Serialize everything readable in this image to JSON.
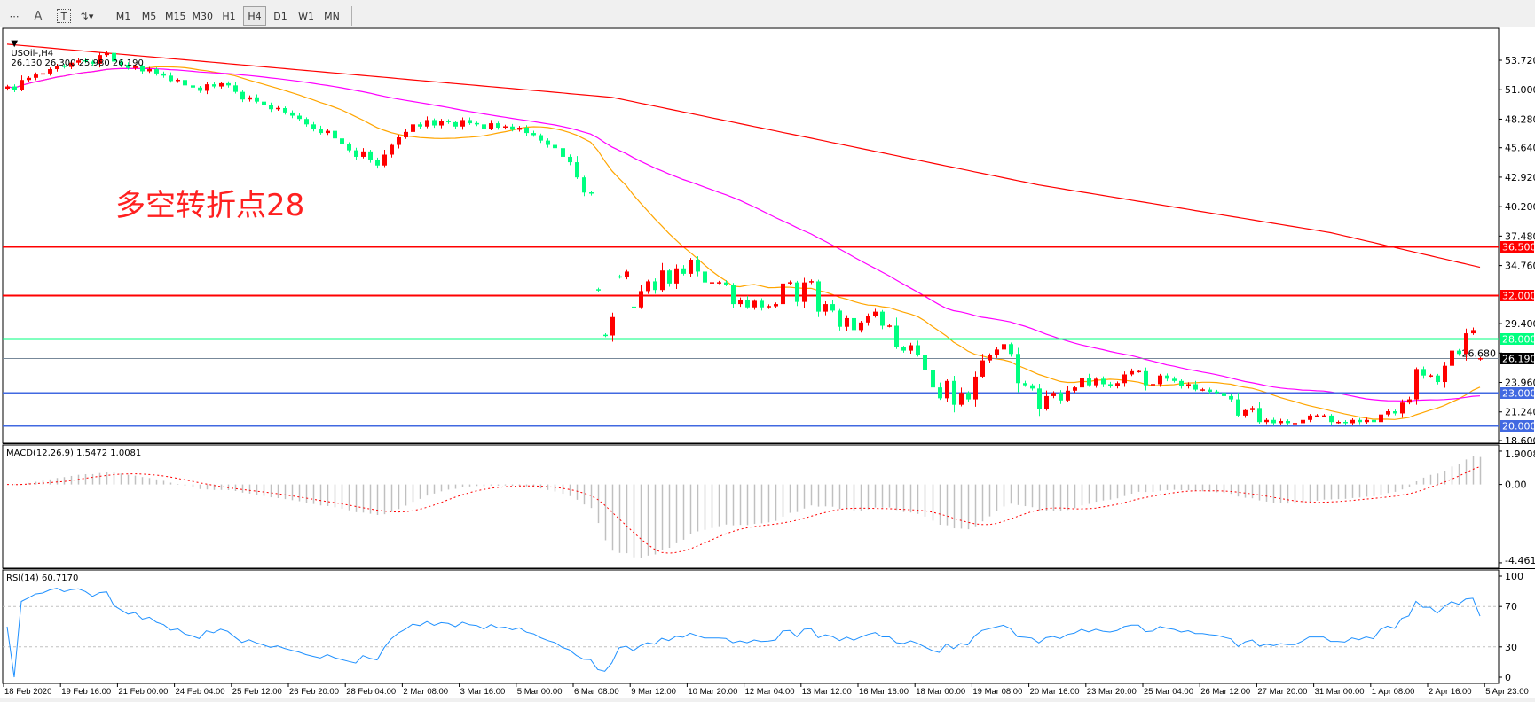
{
  "toolbar": {
    "tools": [
      {
        "name": "grid-period-separator-icon",
        "glyph": "⋯"
      },
      {
        "name": "text-tool-icon",
        "glyph": "A"
      },
      {
        "name": "text-label-tool-icon",
        "glyph": "T"
      },
      {
        "name": "arrows-tool-icon",
        "glyph": "⇅▾"
      }
    ],
    "timeframes": [
      "M1",
      "M5",
      "M15",
      "M30",
      "H1",
      "H4",
      "D1",
      "W1",
      "MN"
    ],
    "active_timeframe": "H4"
  },
  "chart": {
    "symbol_label": "USOil-,H4",
    "ohlc_label": "26.130 26.300 25.980 26.190",
    "last_bar": {
      "open": 26.13,
      "high": 26.3,
      "low": 25.98,
      "close": 26.19
    },
    "annotation": "多空转折点28",
    "price_ticks": [
      "53.720",
      "51.000",
      "48.280",
      "45.640",
      "42.920",
      "40.200",
      "37.480",
      "34.760",
      "29.400",
      "26.680",
      "23.960",
      "21.240",
      "18.600"
    ],
    "levels": [
      {
        "price": 36.5,
        "label": "36.500",
        "color": "#ff0000",
        "text_color": "#ffffff"
      },
      {
        "price": 32.0,
        "label": "32.000",
        "color": "#ff0000",
        "text_color": "#ffffff"
      },
      {
        "price": 28.0,
        "label": "28.000",
        "color": "#00ff7f",
        "text_color": "#ffffff"
      },
      {
        "price": 26.19,
        "label": "26.190",
        "color": "#778899",
        "label_bg": "#000000",
        "text_color": "#ffffff"
      },
      {
        "price": 23.0,
        "label": "23.000",
        "color": "#4169e1",
        "text_color": "#ffffff"
      },
      {
        "price": 20.0,
        "label": "20.000",
        "color": "#4169e1",
        "text_color": "#ffffff"
      }
    ],
    "time_labels": [
      "18 Feb 2020",
      "19 Feb 16:00",
      "21 Feb 00:00",
      "24 Feb 04:00",
      "25 Feb 12:00",
      "26 Feb 20:00",
      "28 Feb 04:00",
      "2 Mar 08:00",
      "3 Mar 16:00",
      "5 Mar 00:00",
      "6 Mar 08:00",
      "9 Mar 12:00",
      "10 Mar 20:00",
      "12 Mar 04:00",
      "13 Mar 12:00",
      "16 Mar 16:00",
      "18 Mar 00:00",
      "19 Mar 08:00",
      "20 Mar 16:00",
      "23 Mar 20:00",
      "25 Mar 04:00",
      "26 Mar 12:00",
      "27 Mar 20:00",
      "31 Mar 00:00",
      "1 Apr 08:00",
      "2 Apr 16:00",
      "5 Apr 23:00"
    ]
  },
  "macd": {
    "label": "MACD(12,26,9) 1.5472 1.0081",
    "axis": [
      "1.9008",
      "0.00",
      "-4.4611"
    ],
    "histogram_color": "#c0c0c0",
    "signal_color": "#ff0000"
  },
  "rsi": {
    "label": "RSI(14) 60.7170",
    "axis": [
      "100",
      "70",
      "30",
      "0"
    ],
    "levels": [
      70,
      30
    ],
    "line_color": "#1e90ff"
  },
  "chart_data": {
    "type": "candlestick",
    "symbol": "USOil-",
    "timeframe": "H4",
    "price_range": [
      18.6,
      53.72
    ],
    "up_color": "#ff0000",
    "down_color": "#00ff80",
    "closes": [
      51.3,
      51.0,
      51.9,
      52.1,
      52.4,
      52.5,
      52.9,
      53.2,
      53.1,
      53.5,
      53.7,
      53.6,
      53.4,
      54.2,
      54.4,
      53.6,
      53.3,
      53.0,
      53.2,
      52.7,
      52.9,
      52.5,
      52.3,
      51.8,
      51.9,
      51.4,
      51.2,
      50.9,
      51.5,
      51.3,
      51.6,
      51.4,
      50.8,
      50.1,
      50.3,
      49.9,
      49.6,
      49.2,
      49.3,
      48.9,
      48.6,
      48.3,
      47.8,
      47.4,
      47.0,
      47.2,
      46.5,
      46.0,
      45.4,
      44.8,
      45.3,
      44.5,
      44.0,
      45.0,
      45.9,
      46.6,
      47.1,
      47.8,
      47.6,
      48.2,
      47.7,
      48.1,
      48.0,
      47.6,
      48.2,
      47.9,
      47.8,
      47.4,
      47.9,
      47.5,
      47.6,
      47.3,
      47.5,
      47.0,
      46.8,
      46.3,
      45.9,
      45.6,
      44.8,
      44.3,
      42.9,
      41.5,
      41.4,
      32.5,
      28.3,
      30.0,
      33.7,
      34.2,
      30.9,
      32.4,
      33.3,
      32.5,
      34.3,
      33.1,
      34.5,
      34.0,
      35.3,
      34.2,
      33.2,
      33.2,
      33.2,
      33.0,
      31.2,
      31.6,
      30.9,
      31.5,
      30.9,
      31.0,
      31.2,
      33.1,
      33.2,
      31.4,
      33.2,
      33.3,
      30.5,
      31.2,
      30.6,
      29.1,
      29.9,
      28.8,
      29.5,
      30.1,
      30.5,
      29.2,
      29.2,
      27.2,
      26.9,
      27.4,
      26.5,
      25.1,
      23.5,
      22.5,
      24.1,
      21.9,
      23.0,
      22.4,
      24.5,
      26.0,
      26.5,
      27.0,
      27.5,
      26.6,
      23.9,
      23.7,
      23.4,
      21.5,
      22.7,
      23.0,
      22.3,
      23.2,
      23.5,
      24.4,
      23.7,
      24.3,
      23.8,
      23.6,
      23.9,
      24.7,
      25.0,
      25.0,
      23.7,
      23.8,
      24.6,
      24.3,
      24.1,
      23.6,
      23.8,
      23.3,
      23.3,
      23.1,
      23.0,
      22.7,
      22.4,
      20.9,
      21.4,
      21.6,
      20.3,
      20.5,
      20.2,
      20.4,
      20.2,
      20.2,
      20.5,
      20.9,
      20.9,
      20.9,
      20.3,
      20.3,
      20.2,
      20.5,
      20.3,
      20.5,
      20.3,
      21.0,
      21.3,
      21.1,
      22.1,
      22.4,
      25.2,
      24.6,
      24.6,
      24.0,
      25.5,
      26.9,
      26.6,
      28.5,
      28.8,
      26.19
    ],
    "moving_averages": [
      {
        "color": "#ffa500",
        "period": 20
      },
      {
        "color": "#ff00ff",
        "period": 50
      },
      {
        "color": "#ff0000",
        "points_by_bar": [
          [
            0,
            55.2
          ],
          [
            85,
            50.3
          ],
          [
            145,
            42.2
          ],
          [
            186,
            37.8
          ],
          [
            207,
            34.6
          ]
        ]
      }
    ]
  }
}
